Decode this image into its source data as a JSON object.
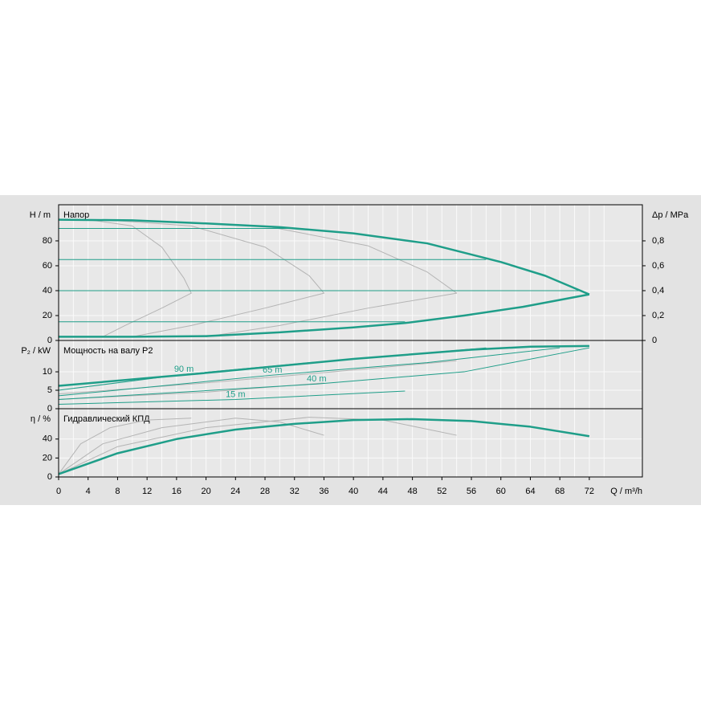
{
  "chart_data": [
    {
      "type": "line",
      "title": "Напор",
      "ylabel": "H / m",
      "y2label": "Δp / MPa",
      "xlim": [
        0,
        79.2
      ],
      "ylim": [
        0,
        109
      ],
      "yticks": [
        0,
        20,
        40,
        60,
        80
      ],
      "y2lim": [
        0,
        1.09
      ],
      "y2ticks": [
        0,
        {
          "value": 0.2,
          "label": "0,2"
        },
        {
          "value": 0.4,
          "label": "0,4"
        },
        {
          "value": 0.6,
          "label": "0,6"
        },
        {
          "value": 0.8,
          "label": "0,8"
        }
      ],
      "grid": true,
      "series": [
        {
          "color": "#b4b4b4",
          "width": 1,
          "x": [
            4,
            10,
            14,
            17,
            18,
            14,
            9,
            6
          ],
          "values": [
            97,
            92,
            75,
            50,
            38,
            26,
            12,
            3
          ]
        },
        {
          "color": "#b4b4b4",
          "width": 1,
          "x": [
            6,
            18,
            28,
            34,
            36,
            28,
            18,
            10
          ],
          "values": [
            97,
            92,
            75,
            52,
            38,
            26,
            12,
            3
          ]
        },
        {
          "color": "#b4b4b4",
          "width": 1,
          "x": [
            8,
            28,
            42,
            50,
            54,
            42,
            30,
            20
          ],
          "values": [
            97,
            92,
            76,
            55,
            38,
            26,
            12,
            3
          ]
        },
        {
          "color": "#1f9e89",
          "width": 1,
          "x": [
            0,
            33
          ],
          "values": [
            90,
            90
          ]
        },
        {
          "color": "#1f9e89",
          "width": 1,
          "x": [
            0,
            58
          ],
          "values": [
            65,
            65
          ]
        },
        {
          "color": "#1f9e89",
          "width": 1,
          "x": [
            0,
            71
          ],
          "values": [
            40,
            40
          ]
        },
        {
          "color": "#1f9e89",
          "width": 1,
          "x": [
            0,
            47
          ],
          "values": [
            15,
            15
          ]
        },
        {
          "color": "#1f9e89",
          "width": 2.5,
          "x": [
            0,
            10,
            20,
            30,
            40,
            50,
            60,
            66,
            72
          ],
          "values": [
            97,
            96.5,
            94,
            91,
            86,
            78,
            63,
            52,
            37
          ]
        },
        {
          "color": "#1f9e89",
          "width": 2.5,
          "x": [
            0,
            10,
            20,
            30,
            40,
            47,
            55,
            63,
            72
          ],
          "values": [
            3,
            3,
            3.5,
            6.5,
            10.5,
            14,
            20,
            27,
            37
          ]
        }
      ]
    },
    {
      "type": "line",
      "title": "Мощность на валу P2",
      "ylabel": "P₂ / kW",
      "xlim": [
        0,
        79.2
      ],
      "ylim": [
        0,
        18.5
      ],
      "yticks": [
        0,
        5,
        10
      ],
      "grid": true,
      "series": [
        {
          "color": "#b4b4b4",
          "width": 1,
          "x": [
            0,
            20,
            40,
            54
          ],
          "values": [
            4,
            7,
            10.5,
            13
          ]
        },
        {
          "color": "#b4b4b4",
          "width": 1,
          "x": [
            0,
            20,
            36
          ],
          "values": [
            2.5,
            4.5,
            7
          ]
        },
        {
          "name": "90 m",
          "color": "#1f9e89",
          "width": 1,
          "x": [
            0,
            17,
            33,
            58
          ],
          "values": [
            5,
            9.3,
            12.3,
            16.5
          ]
        },
        {
          "name": "65 m",
          "color": "#1f9e89",
          "width": 1,
          "x": [
            0,
            29,
            50,
            68
          ],
          "values": [
            3.5,
            9.1,
            12.5,
            16.5
          ]
        },
        {
          "name": "40 m",
          "color": "#1f9e89",
          "width": 1,
          "x": [
            0,
            35,
            55,
            72
          ],
          "values": [
            2.5,
            6.7,
            10,
            16.5
          ]
        },
        {
          "name": "15 m",
          "color": "#1f9e89",
          "width": 1,
          "x": [
            0,
            24,
            47
          ],
          "values": [
            1.2,
            2.5,
            4.8
          ]
        },
        {
          "color": "#1f9e89",
          "width": 2.5,
          "x": [
            0,
            20,
            40,
            56,
            64,
            72
          ],
          "values": [
            6.2,
            9.7,
            13.5,
            16,
            16.8,
            17
          ]
        }
      ]
    },
    {
      "type": "line",
      "title": "Гидравлический КПД",
      "ylabel": "η / %",
      "xlabel": "Q / m³/h",
      "xlim": [
        0,
        79.2
      ],
      "ylim": [
        0,
        72
      ],
      "yticks": [
        0,
        20,
        40
      ],
      "grid": true,
      "xticks": [
        0,
        4,
        8,
        12,
        16,
        20,
        24,
        28,
        32,
        36,
        40,
        44,
        48,
        52,
        56,
        60,
        64,
        68,
        72
      ],
      "series": [
        {
          "color": "#b4b4b4",
          "width": 1,
          "x": [
            0,
            3,
            7,
            12,
            18
          ],
          "values": [
            3,
            35,
            52,
            60,
            62
          ]
        },
        {
          "color": "#b4b4b4",
          "width": 1,
          "x": [
            0,
            6,
            14,
            24,
            30,
            36
          ],
          "values": [
            3,
            35,
            52,
            62,
            58,
            44
          ]
        },
        {
          "color": "#b4b4b4",
          "width": 1,
          "x": [
            0,
            8,
            20,
            34,
            44,
            54
          ],
          "values": [
            3,
            32,
            52,
            63,
            60,
            44
          ]
        },
        {
          "color": "#1f9e89",
          "width": 2.5,
          "x": [
            0,
            8,
            16,
            24,
            32,
            40,
            48,
            56,
            64,
            72
          ],
          "values": [
            3,
            25,
            40,
            50,
            56,
            60,
            61,
            59,
            53,
            43
          ]
        }
      ]
    }
  ]
}
